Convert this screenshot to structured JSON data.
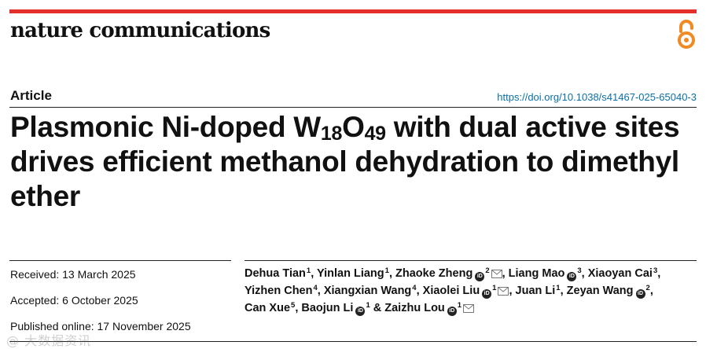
{
  "header": {
    "journal": "nature communications",
    "brand_color": "#e3302c",
    "open_access_icon": "open-access-icon"
  },
  "meta": {
    "article_type": "Article",
    "doi": "https://doi.org/10.1038/s41467-025-65040-3"
  },
  "title": {
    "part1": "Plasmonic Ni-doped W",
    "sub1": "18",
    "part2": "O",
    "sub2": "49",
    "part3": " with dual active sites drives efficient methanol dehydration to dimethyl ether"
  },
  "dates": {
    "received": "Received: 13 March 2025",
    "accepted": "Accepted: 6 October 2025",
    "published": "Published online: 17 November 2025"
  },
  "authors": [
    {
      "name": "Dehua Tian",
      "aff": "1",
      "orcid": false,
      "email": false,
      "sep": ", "
    },
    {
      "name": "Yinlan Liang",
      "aff": "1",
      "orcid": false,
      "email": false,
      "sep": ", "
    },
    {
      "name": "Zhaoke Zheng",
      "aff": "2",
      "orcid": true,
      "email": true,
      "sep": ", "
    },
    {
      "name": "Liang Mao",
      "aff": "3",
      "orcid": true,
      "email": false,
      "sep": ", "
    },
    {
      "name": "Xiaoyan Cai",
      "aff": "3",
      "orcid": false,
      "email": false,
      "sep": ", "
    },
    {
      "name": "Yizhen Chen",
      "aff": "4",
      "orcid": false,
      "email": false,
      "sep": ", "
    },
    {
      "name": "Xiangxian Wang",
      "aff": "4",
      "orcid": false,
      "email": false,
      "sep": ", "
    },
    {
      "name": "Xiaolei Liu",
      "aff": "1",
      "orcid": true,
      "email": true,
      "sep": ", "
    },
    {
      "name": "Juan Li",
      "aff": "1",
      "orcid": false,
      "email": false,
      "sep": ", "
    },
    {
      "name": "Zeyan Wang",
      "aff": "2",
      "orcid": true,
      "email": false,
      "sep": ", "
    },
    {
      "name": "Can Xue",
      "aff": "5",
      "orcid": false,
      "email": false,
      "sep": ", "
    },
    {
      "name": "Baojun Li",
      "aff": "1",
      "orcid": true,
      "email": false,
      "sep": " & "
    },
    {
      "name": "Zaizhu Lou",
      "aff": "1",
      "orcid": true,
      "email": true,
      "sep": ""
    }
  ],
  "orcid_label": "iD",
  "watermark": "@ 大数据资讯"
}
